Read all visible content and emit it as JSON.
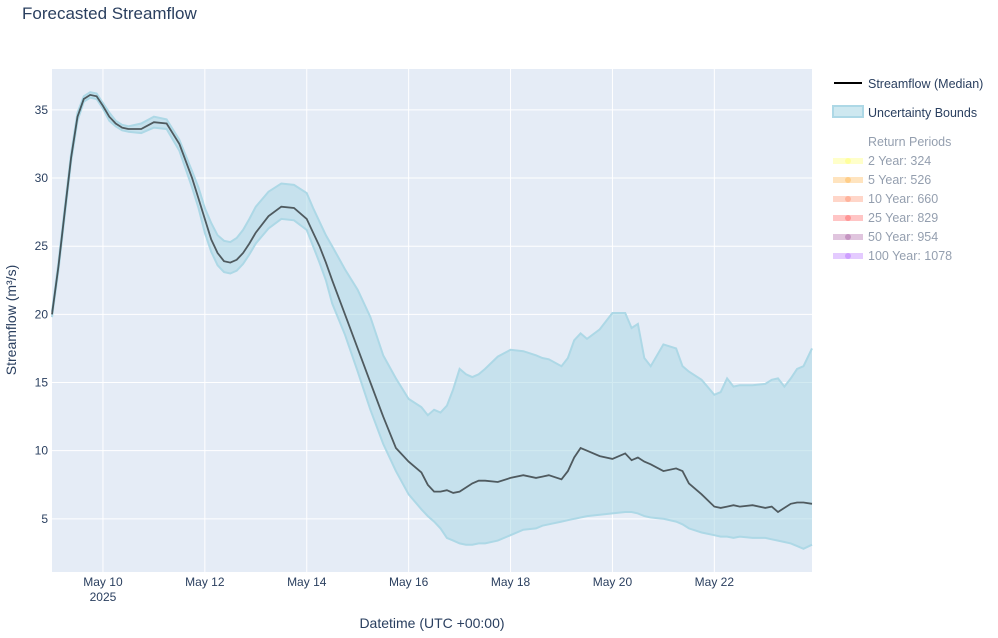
{
  "chart_data": {
    "type": "line",
    "title": "Forecasted Streamflow",
    "xlabel": "Datetime (UTC +00:00)",
    "ylabel": "Streamflow (m³/s)",
    "x_range": [
      "2025-05-09T00:00",
      "2025-05-23T22:00"
    ],
    "ylim": [
      1.1,
      38.0
    ],
    "grid": true,
    "legend_placement": "right",
    "x_ticks": [
      {
        "x": "2025-05-10",
        "label": "May 10",
        "sublabel": "2025"
      },
      {
        "x": "2025-05-12",
        "label": "May 12"
      },
      {
        "x": "2025-05-14",
        "label": "May 14"
      },
      {
        "x": "2025-05-16",
        "label": "May 16"
      },
      {
        "x": "2025-05-18",
        "label": "May 18"
      },
      {
        "x": "2025-05-20",
        "label": "May 20"
      },
      {
        "x": "2025-05-22",
        "label": "May 22"
      }
    ],
    "y_ticks": [
      5,
      10,
      15,
      20,
      25,
      30,
      35
    ],
    "colors": {
      "median": "#000000",
      "band_fill": "#add8e6",
      "band_line": "#add8e6",
      "plot_bg": "#e5ecf6",
      "grid": "#ffffff"
    },
    "series": [
      {
        "name": "Streamflow (Median)",
        "x": [
          "2025-05-09T00:00",
          "2025-05-09T03:00",
          "2025-05-09T06:00",
          "2025-05-09T09:00",
          "2025-05-09T12:00",
          "2025-05-09T15:00",
          "2025-05-09T18:00",
          "2025-05-09T21:00",
          "2025-05-10T00:00",
          "2025-05-10T03:00",
          "2025-05-10T06:00",
          "2025-05-10T09:00",
          "2025-05-10T12:00",
          "2025-05-10T18:00",
          "2025-05-11T00:00",
          "2025-05-11T06:00",
          "2025-05-11T12:00",
          "2025-05-11T18:00",
          "2025-05-11T21:00",
          "2025-05-12T00:00",
          "2025-05-12T03:00",
          "2025-05-12T06:00",
          "2025-05-12T09:00",
          "2025-05-12T12:00",
          "2025-05-12T15:00",
          "2025-05-12T18:00",
          "2025-05-12T21:00",
          "2025-05-13T00:00",
          "2025-05-13T06:00",
          "2025-05-13T12:00",
          "2025-05-13T18:00",
          "2025-05-14T00:00",
          "2025-05-14T03:00",
          "2025-05-14T06:00",
          "2025-05-14T09:00",
          "2025-05-14T12:00",
          "2025-05-14T18:00",
          "2025-05-15T00:00",
          "2025-05-15T06:00",
          "2025-05-15T12:00",
          "2025-05-15T18:00",
          "2025-05-16T00:00",
          "2025-05-16T06:00",
          "2025-05-16T09:00",
          "2025-05-16T12:00",
          "2025-05-16T15:00",
          "2025-05-16T18:00",
          "2025-05-16T21:00",
          "2025-05-17T00:00",
          "2025-05-17T03:00",
          "2025-05-17T06:00",
          "2025-05-17T09:00",
          "2025-05-17T12:00",
          "2025-05-17T18:00",
          "2025-05-18T00:00",
          "2025-05-18T06:00",
          "2025-05-18T12:00",
          "2025-05-18T15:00",
          "2025-05-18T18:00",
          "2025-05-19T00:00",
          "2025-05-19T03:00",
          "2025-05-19T06:00",
          "2025-05-19T09:00",
          "2025-05-19T12:00",
          "2025-05-19T18:00",
          "2025-05-20T00:00",
          "2025-05-20T06:00",
          "2025-05-20T09:00",
          "2025-05-20T12:00",
          "2025-05-20T15:00",
          "2025-05-20T18:00",
          "2025-05-21T00:00",
          "2025-05-21T06:00",
          "2025-05-21T09:00",
          "2025-05-21T12:00",
          "2025-05-21T18:00",
          "2025-05-22T00:00",
          "2025-05-22T03:00",
          "2025-05-22T06:00",
          "2025-05-22T09:00",
          "2025-05-22T12:00",
          "2025-05-22T18:00",
          "2025-05-23T00:00",
          "2025-05-23T03:00",
          "2025-05-23T06:00",
          "2025-05-23T09:00",
          "2025-05-23T12:00",
          "2025-05-23T15:00",
          "2025-05-23T18:00",
          "2025-05-23T22:00"
        ],
        "y": [
          20.0,
          23.5,
          27.5,
          31.5,
          34.5,
          35.8,
          36.1,
          36.0,
          35.3,
          34.5,
          34.0,
          33.7,
          33.6,
          33.6,
          34.1,
          34.0,
          32.5,
          30.0,
          28.5,
          27.0,
          25.5,
          24.5,
          23.9,
          23.8,
          24.0,
          24.5,
          25.2,
          26.0,
          27.2,
          27.9,
          27.8,
          27.0,
          26.0,
          25.0,
          23.8,
          22.5,
          20.0,
          17.5,
          15.0,
          12.5,
          10.2,
          9.2,
          8.4,
          7.5,
          7.0,
          7.0,
          7.1,
          6.9,
          7.0,
          7.3,
          7.6,
          7.8,
          7.8,
          7.7,
          8.0,
          8.2,
          8.0,
          8.1,
          8.2,
          7.9,
          8.5,
          9.5,
          10.2,
          10.0,
          9.6,
          9.4,
          9.8,
          9.3,
          9.5,
          9.2,
          9.0,
          8.5,
          8.7,
          8.5,
          7.6,
          6.8,
          5.9,
          5.8,
          5.9,
          6.0,
          5.9,
          6.0,
          5.8,
          5.9,
          5.5,
          5.8,
          6.1,
          6.2,
          6.2,
          6.1
        ]
      },
      {
        "name": "Uncertainty Bounds",
        "type": "band",
        "x": [
          "2025-05-09T00:00",
          "2025-05-09T03:00",
          "2025-05-09T06:00",
          "2025-05-09T09:00",
          "2025-05-09T12:00",
          "2025-05-09T15:00",
          "2025-05-09T18:00",
          "2025-05-09T21:00",
          "2025-05-10T00:00",
          "2025-05-10T03:00",
          "2025-05-10T06:00",
          "2025-05-10T09:00",
          "2025-05-10T12:00",
          "2025-05-10T18:00",
          "2025-05-11T00:00",
          "2025-05-11T06:00",
          "2025-05-11T12:00",
          "2025-05-11T18:00",
          "2025-05-11T21:00",
          "2025-05-12T00:00",
          "2025-05-12T03:00",
          "2025-05-12T06:00",
          "2025-05-12T09:00",
          "2025-05-12T12:00",
          "2025-05-12T15:00",
          "2025-05-12T18:00",
          "2025-05-12T21:00",
          "2025-05-13T00:00",
          "2025-05-13T06:00",
          "2025-05-13T12:00",
          "2025-05-13T18:00",
          "2025-05-14T00:00",
          "2025-05-14T03:00",
          "2025-05-14T06:00",
          "2025-05-14T09:00",
          "2025-05-14T12:00",
          "2025-05-14T18:00",
          "2025-05-15T00:00",
          "2025-05-15T06:00",
          "2025-05-15T12:00",
          "2025-05-15T18:00",
          "2025-05-16T00:00",
          "2025-05-16T06:00",
          "2025-05-16T09:00",
          "2025-05-16T12:00",
          "2025-05-16T15:00",
          "2025-05-16T18:00",
          "2025-05-16T21:00",
          "2025-05-17T00:00",
          "2025-05-17T03:00",
          "2025-05-17T06:00",
          "2025-05-17T09:00",
          "2025-05-17T12:00",
          "2025-05-17T18:00",
          "2025-05-18T00:00",
          "2025-05-18T06:00",
          "2025-05-18T12:00",
          "2025-05-18T15:00",
          "2025-05-18T18:00",
          "2025-05-19T00:00",
          "2025-05-19T03:00",
          "2025-05-19T06:00",
          "2025-05-19T09:00",
          "2025-05-19T12:00",
          "2025-05-19T18:00",
          "2025-05-20T00:00",
          "2025-05-20T06:00",
          "2025-05-20T09:00",
          "2025-05-20T12:00",
          "2025-05-20T15:00",
          "2025-05-20T18:00",
          "2025-05-21T00:00",
          "2025-05-21T06:00",
          "2025-05-21T09:00",
          "2025-05-21T12:00",
          "2025-05-21T18:00",
          "2025-05-22T00:00",
          "2025-05-22T03:00",
          "2025-05-22T06:00",
          "2025-05-22T09:00",
          "2025-05-22T12:00",
          "2025-05-22T18:00",
          "2025-05-23T00:00",
          "2025-05-23T03:00",
          "2025-05-23T06:00",
          "2025-05-23T09:00",
          "2025-05-23T12:00",
          "2025-05-23T15:00",
          "2025-05-23T18:00",
          "2025-05-23T22:00"
        ],
        "upper": [
          20.2,
          23.8,
          27.8,
          31.8,
          34.8,
          36.0,
          36.3,
          36.2,
          35.5,
          34.8,
          34.2,
          33.9,
          33.8,
          34.0,
          34.5,
          34.3,
          32.8,
          30.5,
          29.3,
          27.8,
          26.7,
          25.8,
          25.4,
          25.3,
          25.6,
          26.2,
          27.0,
          27.9,
          29.0,
          29.6,
          29.5,
          28.9,
          27.8,
          26.8,
          25.8,
          25.0,
          23.3,
          21.8,
          19.8,
          17.0,
          15.3,
          13.8,
          13.2,
          12.6,
          13.0,
          12.8,
          13.3,
          14.5,
          16.0,
          15.6,
          15.4,
          15.6,
          16.0,
          16.9,
          17.4,
          17.3,
          17.0,
          16.8,
          16.7,
          16.2,
          16.8,
          18.1,
          18.6,
          18.2,
          18.9,
          20.1,
          20.1,
          19.0,
          19.3,
          16.8,
          16.2,
          17.8,
          17.5,
          16.2,
          15.8,
          15.2,
          14.1,
          14.3,
          15.3,
          14.7,
          14.8,
          14.8,
          14.9,
          15.2,
          15.3,
          14.7,
          15.3,
          16.0,
          16.2,
          17.5
        ]
      },
      {
        "name": "Uncertainty Bounds (lower)",
        "type": "band-lower",
        "lower": [
          19.8,
          23.2,
          27.2,
          31.2,
          34.2,
          35.6,
          35.9,
          35.8,
          35.1,
          34.2,
          33.8,
          33.5,
          33.4,
          33.3,
          33.7,
          33.6,
          32.0,
          29.3,
          27.8,
          26.0,
          24.6,
          23.6,
          23.1,
          23.0,
          23.2,
          23.7,
          24.4,
          25.2,
          26.3,
          27.0,
          26.9,
          26.2,
          25.0,
          23.8,
          22.5,
          20.8,
          18.5,
          15.8,
          13.0,
          10.5,
          8.5,
          6.8,
          5.7,
          5.2,
          4.8,
          4.3,
          3.6,
          3.4,
          3.2,
          3.1,
          3.1,
          3.2,
          3.2,
          3.4,
          3.8,
          4.2,
          4.3,
          4.5,
          4.6,
          4.8,
          4.9,
          5.0,
          5.1,
          5.2,
          5.3,
          5.4,
          5.5,
          5.5,
          5.4,
          5.2,
          5.1,
          5.0,
          4.8,
          4.6,
          4.3,
          4.0,
          3.8,
          3.7,
          3.7,
          3.6,
          3.7,
          3.6,
          3.6,
          3.5,
          3.4,
          3.3,
          3.2,
          3.0,
          2.8,
          3.1
        ]
      }
    ],
    "legend": [
      {
        "label": "Streamflow (Median)",
        "kind": "line",
        "color": "#000000"
      },
      {
        "label": "Uncertainty Bounds",
        "kind": "band",
        "color": "#add8e6"
      }
    ],
    "return_periods": {
      "title": "Return Periods",
      "items": [
        {
          "label": "2 Year: 324",
          "value": 324,
          "color": "#ffff66"
        },
        {
          "label": "5 Year: 526",
          "value": 526,
          "color": "#ffb347"
        },
        {
          "label": "10 Year: 660",
          "value": 660,
          "color": "#ff8a65"
        },
        {
          "label": "25 Year: 829",
          "value": 829,
          "color": "#ff5a5a"
        },
        {
          "label": "50 Year: 954",
          "value": 954,
          "color": "#a55aa0"
        },
        {
          "label": "100 Year: 1078",
          "value": 1078,
          "color": "#b36bff"
        }
      ]
    }
  }
}
